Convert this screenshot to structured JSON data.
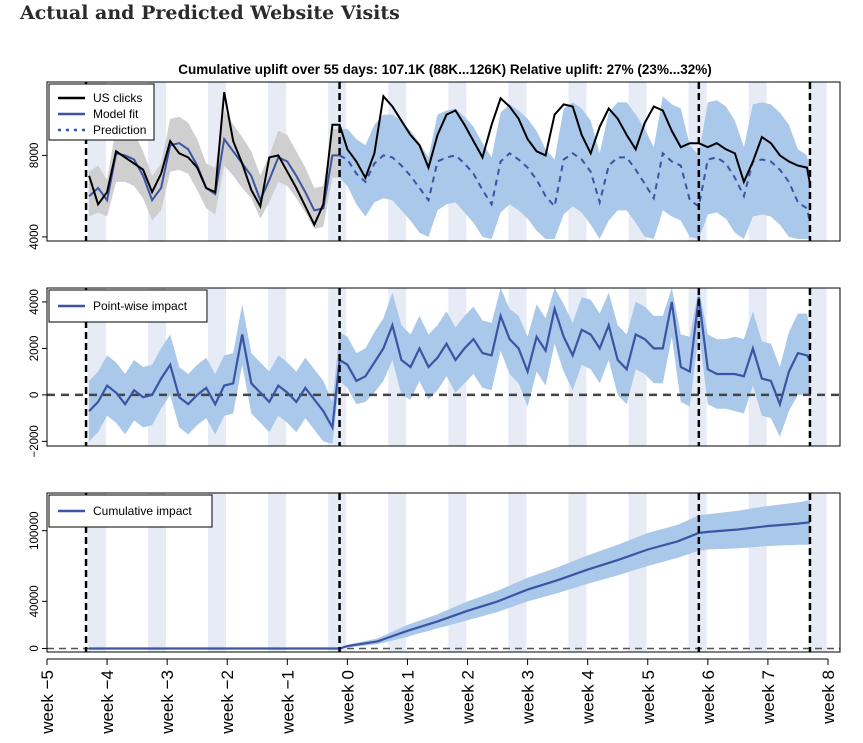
{
  "page_title": "Actual and Predicted Website Visits",
  "colors": {
    "actual": "#000000",
    "model_fit": "#3b54a3",
    "band_pre": "#cfcfcf",
    "band_post": "#a9c8ea",
    "weekend_shade": "#e6ebf5"
  },
  "chart_data": [
    {
      "type": "line",
      "title": "Cumulative uplift over 55 days: 107.1K (88K...126K)   Relative uplift: 27% (23%...32%)",
      "x_unit": "week",
      "xlim": [
        -5,
        8.2
      ],
      "ylim": [
        3800,
        11600
      ],
      "yticks": [
        4000,
        8000
      ],
      "event_lines_week": [
        -4.35,
        -0.13,
        5.85,
        7.7
      ],
      "legend": {
        "position": "top-left",
        "entries": [
          "US clicks",
          "Model fit",
          "Prediction"
        ]
      },
      "actual_name": "US clicks",
      "fit_name": "Model fit",
      "prediction_name": "Prediction",
      "x": [
        -4.3,
        -4.15,
        -4.0,
        -3.85,
        -3.7,
        -3.55,
        -3.4,
        -3.25,
        -3.1,
        -2.95,
        -2.8,
        -2.65,
        -2.5,
        -2.35,
        -2.2,
        -2.05,
        -1.9,
        -1.75,
        -1.6,
        -1.45,
        -1.3,
        -1.15,
        -1.0,
        -0.85,
        -0.7,
        -0.55,
        -0.4,
        -0.25,
        -0.13,
        0.0,
        0.15,
        0.3,
        0.45,
        0.6,
        0.75,
        0.9,
        1.05,
        1.2,
        1.35,
        1.5,
        1.65,
        1.8,
        1.95,
        2.1,
        2.25,
        2.4,
        2.55,
        2.7,
        2.85,
        3.0,
        3.15,
        3.3,
        3.45,
        3.6,
        3.75,
        3.9,
        4.05,
        4.2,
        4.35,
        4.5,
        4.65,
        4.8,
        4.95,
        5.1,
        5.25,
        5.4,
        5.55,
        5.7,
        5.85,
        6.0,
        6.15,
        6.3,
        6.45,
        6.6,
        6.75,
        6.9,
        7.05,
        7.2,
        7.35,
        7.5,
        7.65,
        7.7
      ],
      "actual": [
        7000,
        5600,
        6200,
        8200,
        7900,
        7600,
        7300,
        6200,
        7100,
        8700,
        8100,
        7900,
        7400,
        6400,
        6200,
        11100,
        8700,
        7600,
        6300,
        5500,
        7900,
        8000,
        7200,
        6400,
        5500,
        4600,
        5600,
        9500,
        9500,
        8300,
        7700,
        6900,
        8100,
        10900,
        10400,
        9700,
        9000,
        8500,
        7400,
        9000,
        10000,
        10200,
        9500,
        8700,
        7900,
        9500,
        10800,
        10400,
        9800,
        8800,
        8200,
        8000,
        10000,
        10500,
        10400,
        9000,
        8100,
        9400,
        10300,
        9800,
        9000,
        8300,
        9600,
        10400,
        10200,
        9200,
        8400,
        8600,
        8600,
        8400,
        8600,
        8300,
        8100,
        6700,
        7700,
        8900,
        8600,
        8000,
        7700,
        7500,
        7400,
        6600
      ],
      "fit": [
        6000,
        6400,
        5800,
        8100,
        8000,
        7800,
        7000,
        5800,
        6400,
        8500,
        8600,
        8300,
        7500,
        6400,
        6100,
        8800,
        8200,
        7600,
        7000,
        5800,
        6800,
        7900,
        7700,
        7000,
        6200,
        5300,
        5400,
        8000,
        8000,
        7800,
        7100,
        6700,
        7600,
        8000,
        7900,
        7500,
        7000,
        6400,
        5800,
        7700,
        7900,
        8000,
        7600,
        7100,
        6300,
        5600,
        7700,
        8100,
        7800,
        7400,
        6800,
        6000,
        5500,
        7800,
        8100,
        7800,
        7200,
        5700,
        7500,
        7900,
        7900,
        7300,
        6600,
        5900,
        8100,
        7700,
        7500,
        5800,
        5500,
        7800,
        7900,
        7600,
        6900,
        6000,
        7700,
        7800,
        7700,
        7300,
        6700,
        5700,
        5400,
        4700
      ],
      "fit_lower": [
        5000,
        5200,
        5000,
        6700,
        6700,
        6500,
        5900,
        4800,
        5300,
        7200,
        7300,
        7100,
        6300,
        5400,
        5100,
        7500,
        7000,
        6400,
        5900,
        4900,
        5700,
        6700,
        6500,
        5900,
        5200,
        4400,
        4500,
        6900,
        6900,
        6500,
        5600,
        5000,
        5700,
        5900,
        5800,
        5300,
        4800,
        4200,
        4000,
        5300,
        5600,
        5700,
        5200,
        4700,
        4000,
        3900,
        5200,
        5600,
        5300,
        4900,
        4300,
        3900,
        3900,
        5100,
        5500,
        5200,
        4600,
        3900,
        4800,
        5300,
        5300,
        4700,
        4000,
        3900,
        5300,
        5000,
        4800,
        4000,
        3900,
        5100,
        5200,
        4900,
        4200,
        3900,
        5000,
        5100,
        5000,
        4600,
        4000,
        3900,
        3900,
        3900
      ],
      "fit_upper": [
        7200,
        7500,
        6800,
        9400,
        9300,
        9100,
        8200,
        7000,
        7600,
        9800,
        9900,
        9600,
        8800,
        7600,
        7400,
        10200,
        9500,
        8900,
        8200,
        7000,
        8000,
        9200,
        9000,
        8200,
        7400,
        6400,
        6500,
        9300,
        9300,
        9300,
        8800,
        8500,
        9500,
        10000,
        10000,
        9700,
        9200,
        8600,
        7900,
        10000,
        10200,
        10300,
        9900,
        9400,
        8600,
        7900,
        10100,
        10500,
        10200,
        9800,
        9200,
        8300,
        7800,
        10300,
        10600,
        10300,
        9700,
        8100,
        10100,
        10600,
        10600,
        10000,
        9300,
        8400,
        10900,
        10500,
        10300,
        8500,
        8000,
        10600,
        10700,
        10400,
        9700,
        8400,
        10500,
        10600,
        10500,
        10100,
        9500,
        8300,
        8000,
        7100
      ]
    },
    {
      "type": "line",
      "title": "",
      "x_unit": "week",
      "xlim": [
        -5,
        8.2
      ],
      "ylim": [
        -2200,
        4600
      ],
      "yticks": [
        -2000,
        0,
        2000,
        4000
      ],
      "event_lines_week": [
        -4.35,
        -0.13,
        5.85,
        7.7
      ],
      "legend": {
        "position": "top-left",
        "entries": [
          "Point-wise impact"
        ]
      },
      "series_name": "Point-wise impact",
      "x": [
        -4.3,
        -4.15,
        -4.0,
        -3.85,
        -3.7,
        -3.55,
        -3.4,
        -3.25,
        -3.1,
        -2.95,
        -2.8,
        -2.65,
        -2.5,
        -2.35,
        -2.2,
        -2.05,
        -1.9,
        -1.75,
        -1.6,
        -1.45,
        -1.3,
        -1.15,
        -1.0,
        -0.85,
        -0.7,
        -0.55,
        -0.4,
        -0.25,
        -0.13,
        0.0,
        0.15,
        0.3,
        0.45,
        0.6,
        0.75,
        0.9,
        1.05,
        1.2,
        1.35,
        1.5,
        1.65,
        1.8,
        1.95,
        2.1,
        2.25,
        2.4,
        2.55,
        2.7,
        2.85,
        3.0,
        3.15,
        3.3,
        3.45,
        3.6,
        3.75,
        3.9,
        4.05,
        4.2,
        4.35,
        4.5,
        4.65,
        4.8,
        4.95,
        5.1,
        5.25,
        5.4,
        5.55,
        5.7,
        5.85,
        6.0,
        6.15,
        6.3,
        6.45,
        6.6,
        6.75,
        6.9,
        7.05,
        7.2,
        7.35,
        7.5,
        7.65,
        7.7
      ],
      "values": [
        -700,
        -300,
        400,
        100,
        -400,
        200,
        -100,
        0,
        700,
        1300,
        -100,
        -400,
        0,
        300,
        -400,
        400,
        500,
        2600,
        500,
        100,
        -300,
        400,
        100,
        -300,
        300,
        -200,
        -700,
        -1400,
        1500,
        1300,
        600,
        800,
        1400,
        2000,
        3000,
        1500,
        1200,
        2000,
        1200,
        1600,
        2200,
        1500,
        2000,
        2400,
        1800,
        1700,
        3400,
        2400,
        2000,
        1000,
        2500,
        1900,
        3700,
        2500,
        1700,
        2800,
        2600,
        2000,
        3000,
        1500,
        1100,
        2600,
        2400,
        2000,
        2000,
        4000,
        1200,
        1000,
        4200,
        1100,
        900,
        900,
        900,
        800,
        2000,
        700,
        600,
        -400,
        1000,
        1800,
        1700,
        1500
      ],
      "lower": [
        -2000,
        -1600,
        -900,
        -1200,
        -1700,
        -1100,
        -1400,
        -1300,
        -600,
        0,
        -1400,
        -1700,
        -1300,
        -1000,
        -1700,
        -900,
        -800,
        1300,
        -800,
        -1200,
        -1600,
        -900,
        -1200,
        -1600,
        -1000,
        -1500,
        -2000,
        -2100,
        600,
        300,
        -400,
        -300,
        100,
        600,
        1500,
        0,
        -200,
        600,
        -200,
        200,
        800,
        100,
        500,
        900,
        300,
        200,
        1900,
        900,
        500,
        -500,
        1000,
        400,
        2200,
        1000,
        200,
        1300,
        1100,
        500,
        1500,
        0,
        -400,
        1100,
        900,
        500,
        500,
        2500,
        -300,
        -500,
        2700,
        -400,
        -600,
        -600,
        -700,
        -800,
        400,
        -900,
        -1000,
        -1800,
        -700,
        0,
        0,
        100
      ],
      "upper": [
        600,
        1000,
        1700,
        1400,
        900,
        1500,
        1200,
        1300,
        2000,
        2600,
        1200,
        900,
        1300,
        1600,
        900,
        1700,
        1800,
        3900,
        1800,
        1400,
        1000,
        1700,
        1400,
        1000,
        1600,
        1100,
        600,
        -300,
        2700,
        2500,
        1800,
        2000,
        2700,
        3300,
        4400,
        3000,
        2600,
        3400,
        2600,
        3000,
        3600,
        2900,
        3400,
        3800,
        3200,
        3100,
        4600,
        3700,
        3400,
        2500,
        3900,
        3300,
        4600,
        3900,
        3100,
        4200,
        4100,
        3500,
        4400,
        3000,
        2600,
        4000,
        3800,
        3400,
        3400,
        4600,
        2600,
        2500,
        4600,
        2600,
        2400,
        2400,
        2500,
        2400,
        3600,
        2300,
        2200,
        1200,
        2700,
        3500,
        3500,
        2800
      ]
    },
    {
      "type": "area",
      "title": "",
      "x_unit": "week",
      "xlim": [
        -5,
        8.2
      ],
      "ylim": [
        -3000,
        132000
      ],
      "yticks": [
        0,
        40000,
        100000
      ],
      "event_lines_week": [
        -4.35,
        -0.13,
        5.85,
        7.7
      ],
      "legend": {
        "position": "top-left",
        "entries": [
          "Cumulative impact"
        ]
      },
      "series_name": "Cumulative impact",
      "x": [
        -4.3,
        -0.13,
        0.0,
        0.5,
        1.0,
        1.5,
        2.0,
        2.5,
        3.0,
        3.5,
        4.0,
        4.5,
        5.0,
        5.5,
        5.85,
        6.0,
        6.5,
        7.0,
        7.5,
        7.7
      ],
      "values": [
        0,
        0,
        2000,
        6000,
        15000,
        23000,
        32000,
        40000,
        50000,
        58000,
        67000,
        75000,
        84000,
        91000,
        98000,
        99000,
        101000,
        104000,
        106000,
        107100
      ],
      "lower": [
        0,
        0,
        800,
        3500,
        10000,
        17000,
        24000,
        31000,
        40000,
        47000,
        55000,
        62000,
        70000,
        77000,
        83000,
        84000,
        85000,
        87000,
        88000,
        88000
      ],
      "upper": [
        0,
        0,
        3200,
        8500,
        20000,
        29000,
        40000,
        49000,
        60000,
        69000,
        79000,
        88000,
        98000,
        105000,
        113000,
        114000,
        117000,
        121000,
        124000,
        126000
      ]
    }
  ],
  "x_axis": {
    "ticks": [
      -5,
      -4,
      -3,
      -2,
      -1,
      0,
      1,
      2,
      3,
      4,
      5,
      6,
      7,
      8
    ],
    "labels": [
      "week −5",
      "week −4",
      "week −3",
      "week −2",
      "week −1",
      "week 0",
      "week 1",
      "week 2",
      "week 3",
      "week 4",
      "week 5",
      "week 6",
      "week 7",
      "week 8"
    ]
  },
  "y_tick_labels": {
    "panel1": [
      "4000",
      "8000"
    ],
    "panel2": [
      "−2000",
      "0",
      "2000",
      "4000"
    ],
    "panel3": [
      "0",
      "40000",
      "100000"
    ]
  }
}
